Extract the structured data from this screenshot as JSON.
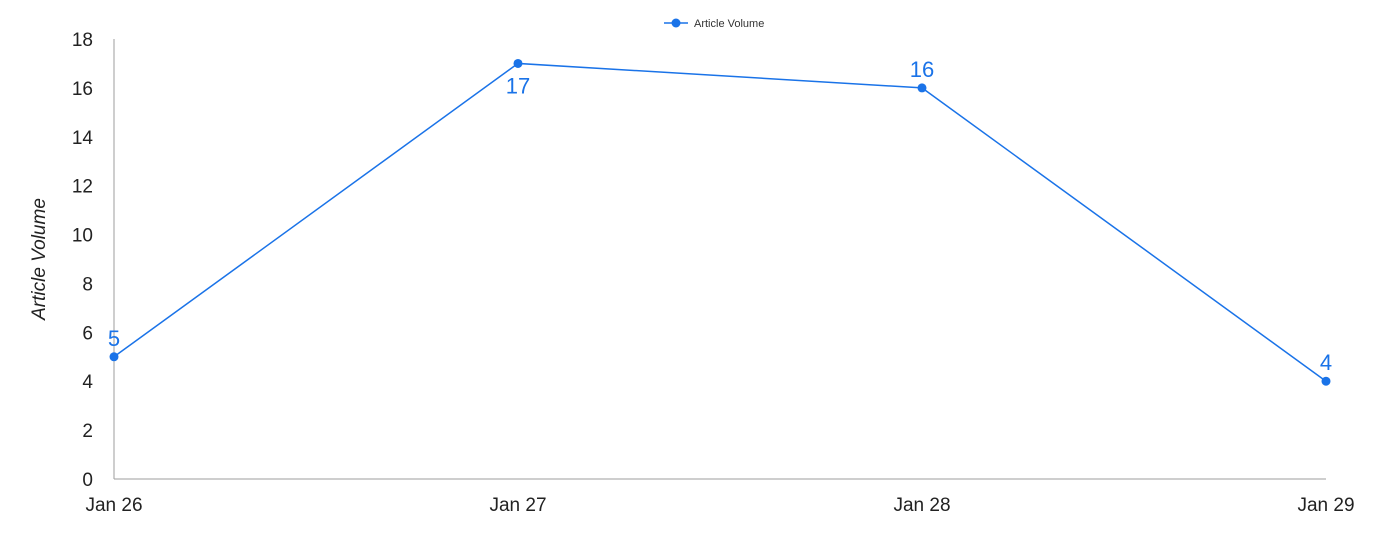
{
  "chart_data": {
    "type": "line",
    "categories": [
      "Jan 26",
      "Jan 27",
      "Jan 28",
      "Jan 29"
    ],
    "series": [
      {
        "name": "Article Volume",
        "values": [
          5,
          17,
          16,
          4
        ],
        "color": "#1a73e8"
      }
    ],
    "ylabel": "Article Volume",
    "xlabel": "",
    "ylim": [
      0,
      18
    ],
    "yticks": [
      0,
      2,
      4,
      6,
      8,
      10,
      12,
      14,
      16,
      18
    ],
    "grid": false,
    "legend_position": "top-center",
    "data_labels": true
  }
}
